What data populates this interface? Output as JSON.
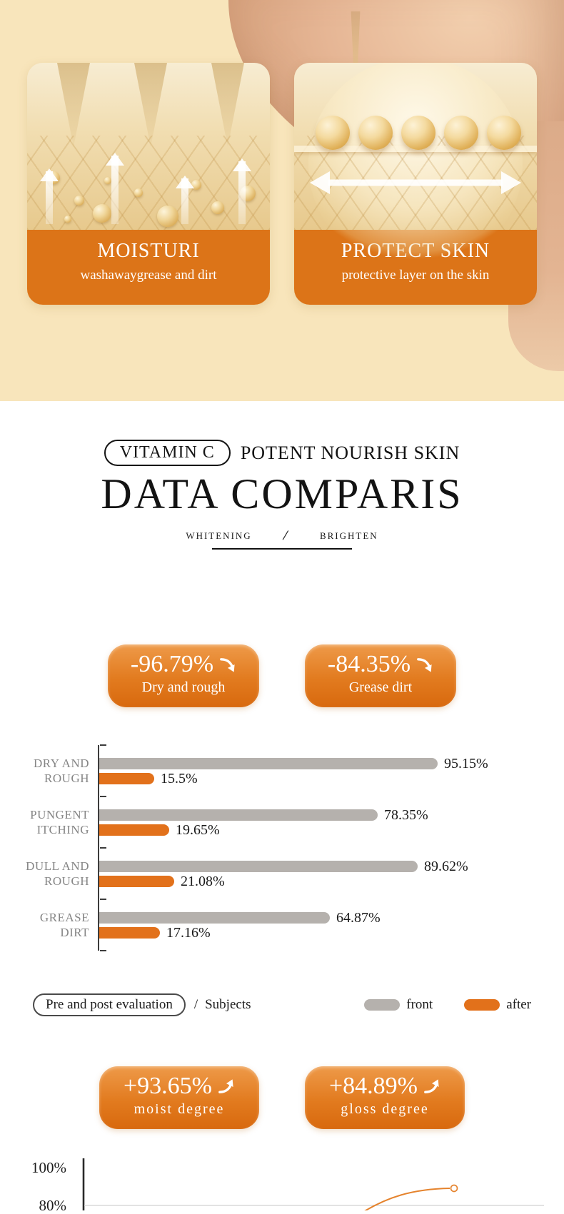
{
  "theme": {
    "cream_bg": "#f8e5bb",
    "band_orange": "#dc7418",
    "badge_orange_top": "#ee9a49",
    "badge_orange_bottom": "#d8690e",
    "bar_gray": "#b5b1ad",
    "bar_orange": "#e2711b",
    "category_gray": "#858585",
    "ink": "#161616",
    "gridline": "#d9d9d9",
    "curve_orange": "#e5832d"
  },
  "hero": {
    "cards": [
      {
        "title": "MOISTURI",
        "subtitle": "washawaygrease and dirt"
      },
      {
        "title": "PROTECT SKIN",
        "subtitle": "protective layer on the skin"
      }
    ]
  },
  "heading": {
    "pill": "VITAMIN C",
    "tagline": "POTENT NOURISH SKIN",
    "title": "DATA COMPARIS",
    "sub_left": "WHITENING",
    "sub_slash": "/",
    "sub_right": "BRIGHTEN"
  },
  "stats_top": [
    {
      "value": "-96.79%",
      "direction": "down",
      "label": "Dry and rough"
    },
    {
      "value": "-84.35%",
      "direction": "down",
      "label": "Grease dirt"
    }
  ],
  "chart_data": [
    {
      "type": "bar",
      "orientation": "horizontal",
      "categories": [
        "DRY AND\nROUGH",
        "PUNGENT\nITCHING",
        "DULL AND\nROUGH",
        "GREASE\nDIRT"
      ],
      "series": [
        {
          "name": "front",
          "color": "#b5b1ad",
          "values": [
            95.15,
            78.35,
            89.62,
            64.87
          ],
          "labels": [
            "95.15%",
            "78.35%",
            "89.62%",
            "64.87%"
          ]
        },
        {
          "name": "after",
          "color": "#e2711b",
          "values": [
            15.5,
            19.65,
            21.08,
            17.16
          ],
          "labels": [
            "15.5%",
            "19.65%",
            "21.08%",
            "17.16%"
          ]
        }
      ],
      "xlim": [
        0,
        100
      ],
      "grid": false,
      "legend_position": "below-right"
    },
    {
      "type": "line",
      "yticks": [
        "100%",
        "80%"
      ],
      "ylim_visible": [
        80,
        100
      ],
      "grid": "horizontal line at 80%",
      "series": [
        {
          "name": "rising-trend",
          "color": "#e5832d",
          "endpoint_value_estimate": 89.5,
          "marker": "open-circle"
        }
      ],
      "cropped_at_image_bottom": true
    }
  ],
  "chart_footer": {
    "pill": "Pre and post evaluation",
    "slash": "/",
    "subjects": "Subjects",
    "legend": [
      {
        "label": "front",
        "color": "#b5b1ad"
      },
      {
        "label": "after",
        "color": "#e2711b"
      }
    ]
  },
  "stats_bottom": [
    {
      "value": "+93.65%",
      "direction": "up",
      "label": "moist degree"
    },
    {
      "value": "+84.89%",
      "direction": "up",
      "label": "gloss degree"
    }
  ]
}
